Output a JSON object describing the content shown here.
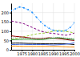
{
  "chart_data": {
    "type": "line",
    "x": [
      1970,
      1972,
      1974,
      1976,
      1978,
      1980,
      1982,
      1984,
      1986,
      1988,
      1990,
      1992,
      1994,
      1996,
      1998,
      2000
    ],
    "series": [
      {
        "color": "#1e90ff",
        "line_style": "dotted",
        "marker": "circle",
        "values": [
          210,
          220,
          230,
          225,
          215,
          200,
          175,
          150,
          130,
          115,
          105,
          100,
          100,
          105,
          120,
          145
        ]
      },
      {
        "color": "#800080",
        "line_style": "dashed",
        "values": [
          155,
          150,
          145,
          140,
          130,
          120,
          110,
          100,
          95,
          90,
          88,
          85,
          80,
          78,
          82,
          90
        ]
      },
      {
        "color": "#9acd32",
        "line_style": "dashed",
        "values": [
          55,
          60,
          65,
          70,
          75,
          80,
          85,
          88,
          90,
          95,
          100,
          105,
          102,
          98,
          95,
          90
        ]
      },
      {
        "color": "#8b0000",
        "line_style": "solid",
        "values": [
          75,
          72,
          70,
          68,
          65,
          62,
          60,
          60,
          62,
          65,
          62,
          60,
          58,
          55,
          52,
          50
        ]
      },
      {
        "color": "#a9a9a9",
        "line_style": "dotted",
        "values": [
          65,
          65,
          65,
          63,
          62,
          62,
          62,
          62,
          63,
          65,
          65,
          65,
          65,
          63,
          62,
          60
        ]
      },
      {
        "color": "#228b22",
        "line_style": "solid",
        "values": [
          55,
          55,
          56,
          57,
          57,
          56,
          55,
          55,
          56,
          60,
          62,
          65,
          63,
          60,
          58,
          55
        ]
      },
      {
        "color": "#000000",
        "line_style": "solid",
        "values": [
          35,
          36,
          36,
          35,
          34,
          34,
          33,
          33,
          32,
          32,
          32,
          33,
          33,
          32,
          30,
          28
        ]
      },
      {
        "color": "#ff8c00",
        "line_style": "solid",
        "values": [
          20,
          20,
          19,
          18,
          18,
          18,
          18,
          18,
          18,
          18,
          18,
          18,
          17,
          16,
          15,
          15
        ]
      },
      {
        "color": "#4169e1",
        "line_style": "solid",
        "values": [
          28,
          28,
          29,
          29,
          28,
          28,
          28,
          28,
          28,
          27,
          26,
          27,
          28,
          30,
          33,
          38
        ]
      }
    ],
    "xlim": [
      1970,
      2000
    ],
    "xticks": [
      1975,
      1980,
      1985,
      1990,
      1995,
      2000
    ],
    "ylim": [
      0,
      250
    ],
    "yticks": [
      0,
      50,
      100,
      150,
      200
    ],
    "grid": true
  }
}
